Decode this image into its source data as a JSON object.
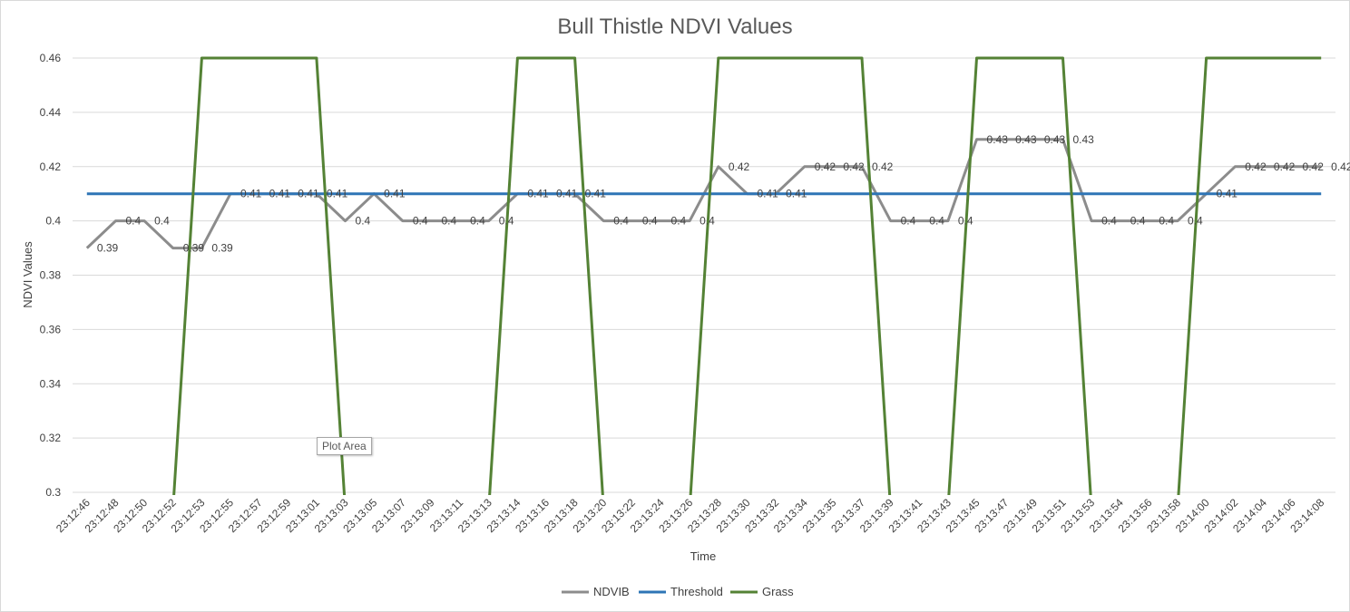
{
  "chart_data": {
    "type": "line",
    "title": "Bull Thistle NDVI Values",
    "xlabel": "Time",
    "ylabel": "NDVI Values",
    "ylim": [
      0.3,
      0.46
    ],
    "ytick_step": 0.02,
    "ytick_labels": [
      "0.3",
      "0.32",
      "0.34",
      "0.36",
      "0.38",
      "0.4",
      "0.42",
      "0.44",
      "0.46"
    ],
    "grid": "horizontal",
    "legend_position": "bottom",
    "categories": [
      "23:12:46",
      "23:12:48",
      "23:12:50",
      "23:12:52",
      "23:12:53",
      "23:12:55",
      "23:12:57",
      "23:12:59",
      "23:13:01",
      "23:13:03",
      "23:13:05",
      "23:13:07",
      "23:13:09",
      "23:13:11",
      "23:13:13",
      "23:13:14",
      "23:13:16",
      "23:13:18",
      "23:13:20",
      "23:13:22",
      "23:13:24",
      "23:13:26",
      "23:13:28",
      "23:13:30",
      "23:13:32",
      "23:13:34",
      "23:13:35",
      "23:13:37",
      "23:13:39",
      "23:13:41",
      "23:13:43",
      "23:13:45",
      "23:13:47",
      "23:13:49",
      "23:13:51",
      "23:13:53",
      "23:13:54",
      "23:13:56",
      "23:13:58",
      "23:14:00",
      "23:14:02",
      "23:14:04",
      "23:14:06",
      "23:14:08"
    ],
    "series": [
      {
        "name": "NDVIB",
        "color": "#8c8c8c",
        "show_labels": true,
        "values": [
          0.39,
          0.4,
          0.4,
          0.39,
          0.39,
          0.41,
          0.41,
          0.41,
          0.41,
          0.4,
          0.41,
          0.4,
          0.4,
          0.4,
          0.4,
          0.41,
          0.41,
          0.41,
          0.4,
          0.4,
          0.4,
          0.4,
          0.42,
          0.41,
          0.41,
          0.42,
          0.42,
          0.42,
          0.4,
          0.4,
          0.4,
          0.43,
          0.43,
          0.43,
          0.43,
          0.4,
          0.4,
          0.4,
          0.4,
          0.41,
          0.42,
          0.42,
          0.42,
          0.42
        ],
        "labels": [
          "0.39",
          "0.4",
          "0.4",
          "0.39",
          "0.39",
          "0.41",
          "0.41",
          "0.41",
          "0.41",
          "0.4",
          "0.41",
          "0.4",
          "0.4",
          "0.4",
          "0.4",
          "0.41",
          "0.41",
          "0.41",
          "0.4",
          "0.4",
          "0.4",
          "0.4",
          "0.42",
          "0.41",
          "0.41",
          "0.42",
          "0.42",
          "0.42",
          "0.4",
          "0.4",
          "0.4",
          "0.43",
          "0.43",
          "0.43",
          "0.43",
          "0.4",
          "0.4",
          "0.4",
          "0.4",
          "0.41",
          "0.42",
          "0.42",
          "0.42",
          "0.42"
        ]
      },
      {
        "name": "Threshold",
        "color": "#2e75b6",
        "show_labels": false,
        "values": [
          0.41,
          0.41,
          0.41,
          0.41,
          0.41,
          0.41,
          0.41,
          0.41,
          0.41,
          0.41,
          0.41,
          0.41,
          0.41,
          0.41,
          0.41,
          0.41,
          0.41,
          0.41,
          0.41,
          0.41,
          0.41,
          0.41,
          0.41,
          0.41,
          0.41,
          0.41,
          0.41,
          0.41,
          0.41,
          0.41,
          0.41,
          0.41,
          0.41,
          0.41,
          0.41,
          0.41,
          0.41,
          0.41,
          0.41,
          0.41,
          0.41,
          0.41,
          0.41,
          0.41
        ]
      },
      {
        "name": "Grass",
        "color": "#548235",
        "show_labels": false,
        "values": [
          0,
          0,
          0,
          0,
          1,
          1,
          1,
          1,
          1,
          0,
          0,
          0,
          0,
          0,
          0,
          1,
          1,
          1,
          0,
          0,
          0,
          0,
          1,
          1,
          1,
          1,
          1,
          1,
          0,
          0,
          0,
          1,
          1,
          1,
          1,
          0,
          0,
          0,
          0,
          1,
          1,
          1,
          1,
          1
        ]
      }
    ]
  },
  "tooltip": {
    "text": "Plot Area"
  }
}
